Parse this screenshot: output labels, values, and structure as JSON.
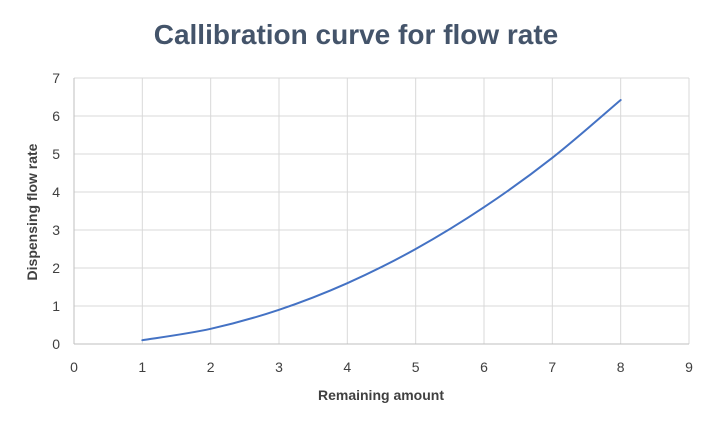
{
  "chart_data": {
    "type": "line",
    "title": "Callibration curve for flow rate",
    "xlabel": "Remaining amount",
    "ylabel": "Dispensing flow rate",
    "xlim": [
      0,
      9
    ],
    "ylim": [
      0,
      7
    ],
    "x_ticks": [
      "0",
      "1",
      "2",
      "3",
      "4",
      "5",
      "6",
      "7",
      "8",
      "9"
    ],
    "y_ticks": [
      "0",
      "1",
      "2",
      "3",
      "4",
      "5",
      "6",
      "7"
    ],
    "grid": true,
    "legend": "none",
    "series": [
      {
        "color": "#4472c4",
        "smooth": true,
        "x": [
          1,
          2,
          3,
          4,
          5,
          6,
          7,
          8
        ],
        "y": [
          0.1,
          0.4,
          0.9,
          1.6,
          2.5,
          3.6,
          4.9,
          6.42
        ]
      }
    ]
  }
}
